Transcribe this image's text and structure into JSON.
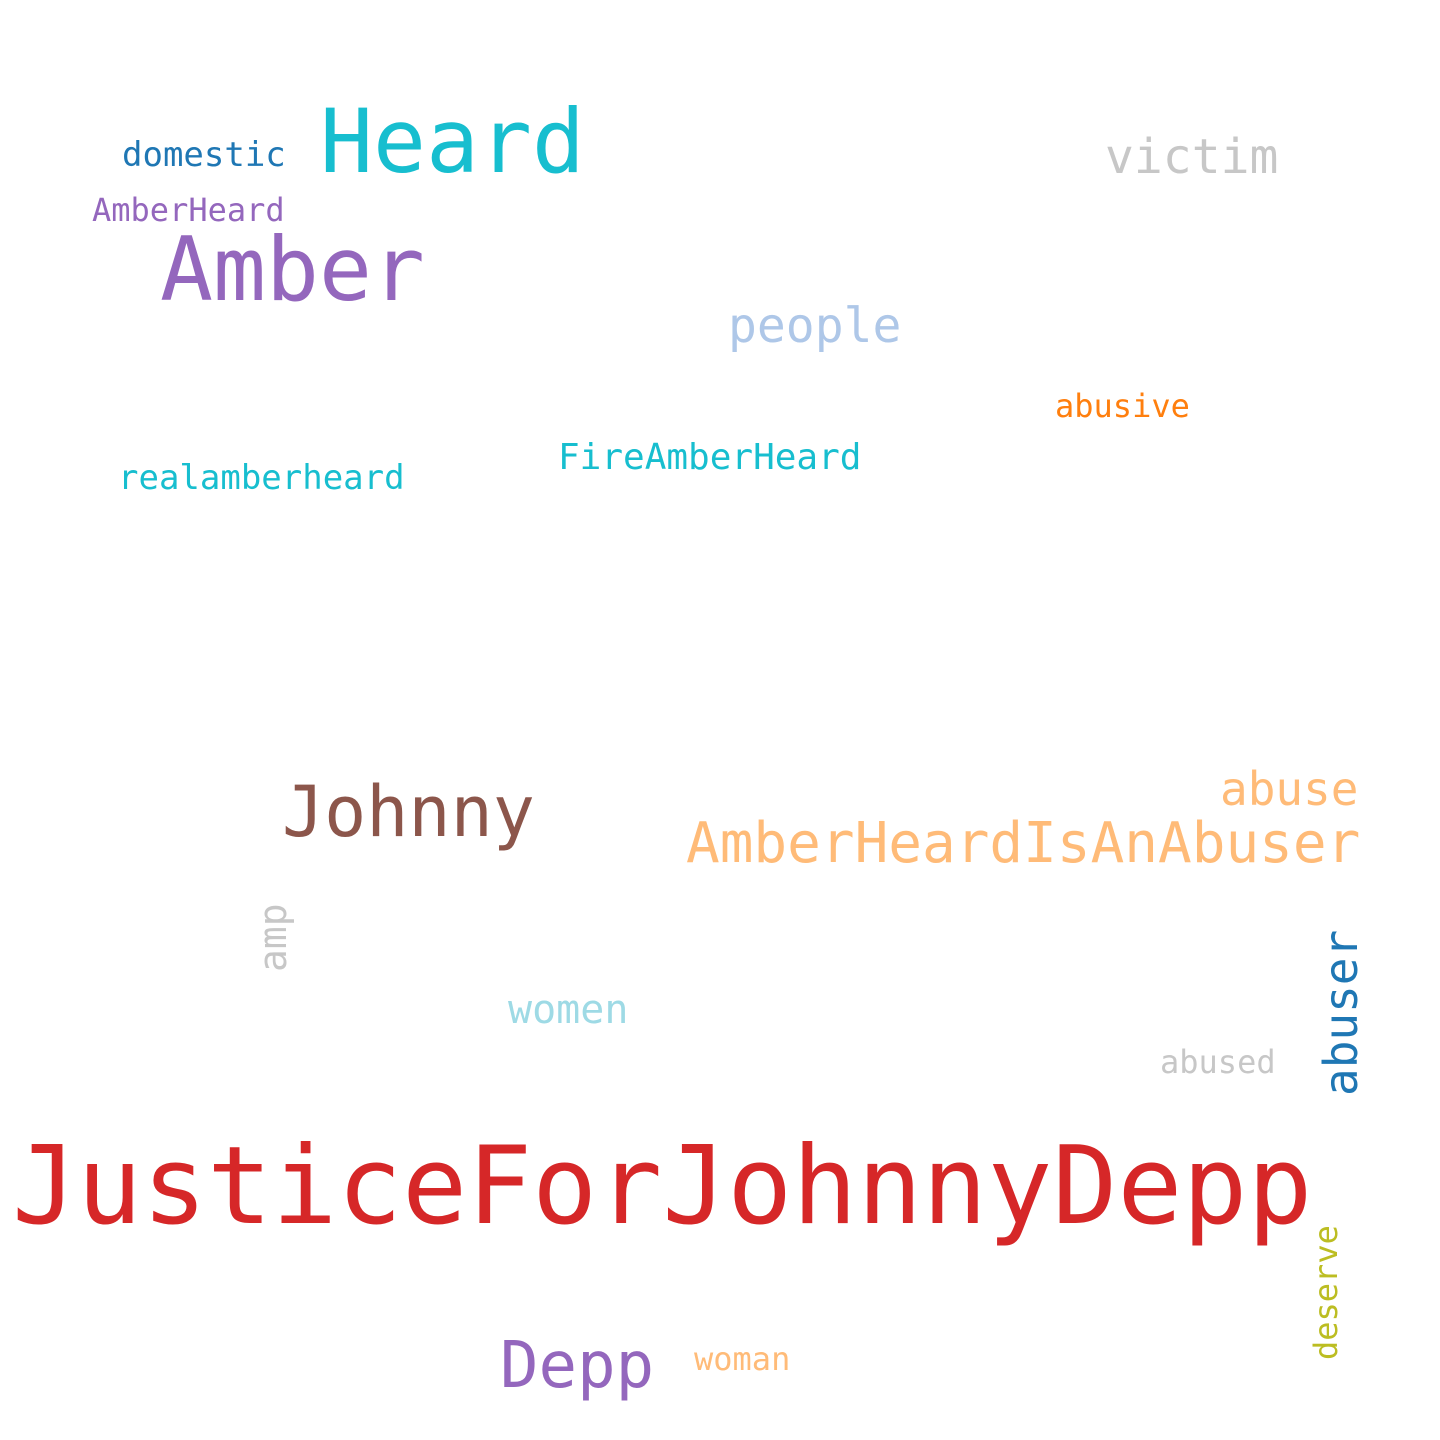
{
  "words": {
    "justice": {
      "text": "JusticeForJohnnyDepp",
      "color": "#d62728"
    },
    "heard": {
      "text": "Heard",
      "color": "#17becf"
    },
    "amber": {
      "text": "Amber",
      "color": "#9467bd"
    },
    "johnny": {
      "text": "Johnny",
      "color": "#8c564b"
    },
    "amberheardisanabuser": {
      "text": "AmberHeardIsAnAbuser",
      "color": "#ffbb78"
    },
    "depp": {
      "text": "Depp",
      "color": "#9467bd"
    },
    "people": {
      "text": "people",
      "color": "#aec7e8"
    },
    "victim": {
      "text": "victim",
      "color": "#c7c7c7"
    },
    "abuse": {
      "text": "abuse",
      "color": "#ffbb78"
    },
    "abuser": {
      "text": "abuser",
      "color": "#1f77b4"
    },
    "women": {
      "text": "women",
      "color": "#9edae5"
    },
    "amp": {
      "text": "amp",
      "color": "#c7c7c7"
    },
    "domestic": {
      "text": "domestic",
      "color": "#1f77b4"
    },
    "amberheard": {
      "text": "AmberHeard",
      "color": "#9467bd"
    },
    "realamberheard": {
      "text": "realamberheard",
      "color": "#17becf"
    },
    "fireamberheard": {
      "text": "FireAmberHeard",
      "color": "#17becf"
    },
    "abusive": {
      "text": "abusive",
      "color": "#ff7f0e"
    },
    "abused": {
      "text": "abused",
      "color": "#c7c7c7"
    },
    "woman": {
      "text": "woman",
      "color": "#ffbb78"
    },
    "deserve": {
      "text": "deserve",
      "color": "#bcbd22"
    }
  }
}
